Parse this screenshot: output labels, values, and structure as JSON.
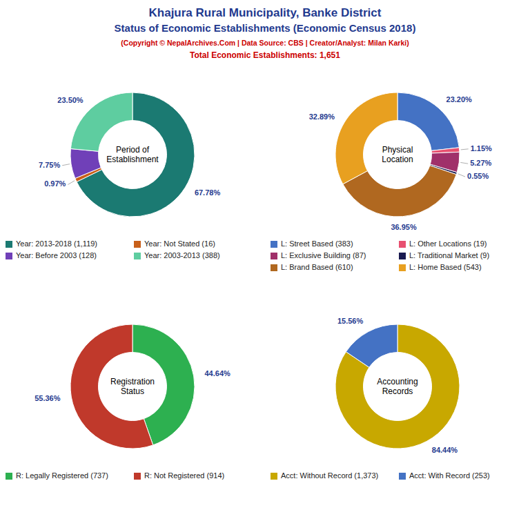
{
  "title": "Khajura Rural Municipality, Banke District",
  "subtitle": "Status of Economic Establishments (Economic Census 2018)",
  "annotations": [
    "(Copyright © NepalArchives.Com | Data Source: CBS | Creator/Analyst: Milan Karki)",
    "Total Economic Establishments: 1,651"
  ],
  "chart_data": [
    {
      "type": "pie",
      "title": "Period of\nEstablishment",
      "categories": [
        "Year: 2013-2018 (1,119)",
        "Year: Not Stated (16)",
        "Year: Before 2003 (128)",
        "Year: 2003-2013 (388)"
      ],
      "values": [
        67.78,
        0.97,
        7.75,
        23.5
      ],
      "value_labels": [
        "67.78%",
        "0.97%",
        "7.75%",
        "23.50%"
      ],
      "colors": [
        "#1b7a72",
        "#c8601a",
        "#7040b8",
        "#5ecda0"
      ],
      "data_labels": true,
      "legend": "bottom"
    },
    {
      "type": "pie",
      "title": "Physical\nLocation",
      "categories": [
        "L: Street Based (383)",
        "L: Other Locations (19)",
        "L: Exclusive Building (87)",
        "L: Traditional Market (9)",
        "L: Brand Based (610)",
        "L: Home Based (543)"
      ],
      "values": [
        23.2,
        1.15,
        5.27,
        0.55,
        36.95,
        32.89
      ],
      "value_labels": [
        "23.20%",
        "1.15%",
        "5.27%",
        "0.55%",
        "36.95%",
        "32.89%"
      ],
      "colors": [
        "#4472c4",
        "#e85070",
        "#a0306a",
        "#1a1a50",
        "#b06820",
        "#e8a020"
      ],
      "data_labels": true,
      "legend": "bottom"
    },
    {
      "type": "pie",
      "title": "Registration\nStatus",
      "categories": [
        "R: Legally Registered (737)",
        "R: Not Registered (914)"
      ],
      "values": [
        44.64,
        55.36
      ],
      "value_labels": [
        "44.64%",
        "55.36%"
      ],
      "colors": [
        "#2db050",
        "#c0392b"
      ],
      "data_labels": true,
      "legend": "bottom"
    },
    {
      "type": "pie",
      "title": "Accounting\nRecords",
      "categories": [
        "Acct: Without Record (1,373)",
        "Acct: With Record (253)"
      ],
      "values": [
        84.44,
        15.56
      ],
      "value_labels": [
        "84.44%",
        "15.56%"
      ],
      "colors": [
        "#c8a800",
        "#4472c4"
      ],
      "data_labels": true,
      "legend": "bottom"
    }
  ]
}
